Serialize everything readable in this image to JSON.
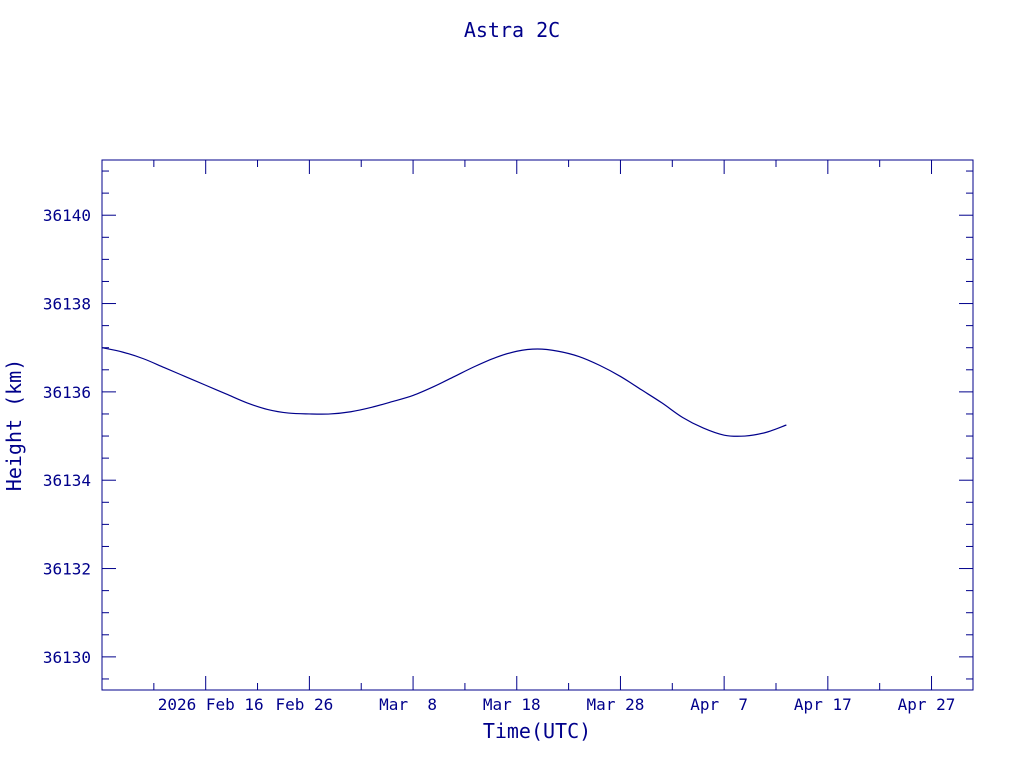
{
  "chart_data": {
    "type": "line",
    "title": "Astra 2C",
    "xlabel": "Time(UTC)",
    "ylabel": "Height (km)",
    "color": "#00008b",
    "grid": false,
    "xlim": [
      "2026-02-06",
      "2026-05-01"
    ],
    "ylim": [
      36129.25,
      36141.25
    ],
    "x_ticks": [
      {
        "date": "2026-02-16",
        "label": "2026 Feb 16"
      },
      {
        "date": "2026-02-26",
        "label": "Feb 26"
      },
      {
        "date": "2026-03-08",
        "label": "Mar  8"
      },
      {
        "date": "2026-03-18",
        "label": "Mar 18"
      },
      {
        "date": "2026-03-28",
        "label": "Mar 28"
      },
      {
        "date": "2026-04-07",
        "label": "Apr  7"
      },
      {
        "date": "2026-04-17",
        "label": "Apr 17"
      },
      {
        "date": "2026-04-27",
        "label": "Apr 27"
      }
    ],
    "y_ticks": [
      36130,
      36132,
      36134,
      36136,
      36138,
      36140
    ],
    "series": [
      {
        "x": [
          "2026-02-06",
          "2026-02-08",
          "2026-02-10",
          "2026-02-12",
          "2026-02-14",
          "2026-02-16",
          "2026-02-18",
          "2026-02-20",
          "2026-02-22",
          "2026-02-24",
          "2026-02-26",
          "2026-02-28",
          "2026-03-02",
          "2026-03-04",
          "2026-03-06",
          "2026-03-08",
          "2026-03-10",
          "2026-03-12",
          "2026-03-14",
          "2026-03-16",
          "2026-03-18",
          "2026-03-20",
          "2026-03-22",
          "2026-03-24",
          "2026-03-26",
          "2026-03-28",
          "2026-03-30",
          "2026-04-01",
          "2026-04-03",
          "2026-04-05",
          "2026-04-07",
          "2026-04-09",
          "2026-04-11",
          "2026-04-13"
        ],
        "y": [
          36137.0,
          36136.9,
          36136.75,
          36136.55,
          36136.35,
          36136.15,
          36135.95,
          36135.75,
          36135.6,
          36135.52,
          36135.5,
          36135.5,
          36135.55,
          36135.65,
          36135.78,
          36135.92,
          36136.12,
          36136.35,
          36136.58,
          36136.78,
          36136.92,
          36136.97,
          36136.92,
          36136.8,
          36136.6,
          36136.35,
          36136.05,
          36135.75,
          36135.42,
          36135.18,
          36135.02,
          36135.0,
          36135.08,
          36135.25
        ]
      }
    ]
  }
}
